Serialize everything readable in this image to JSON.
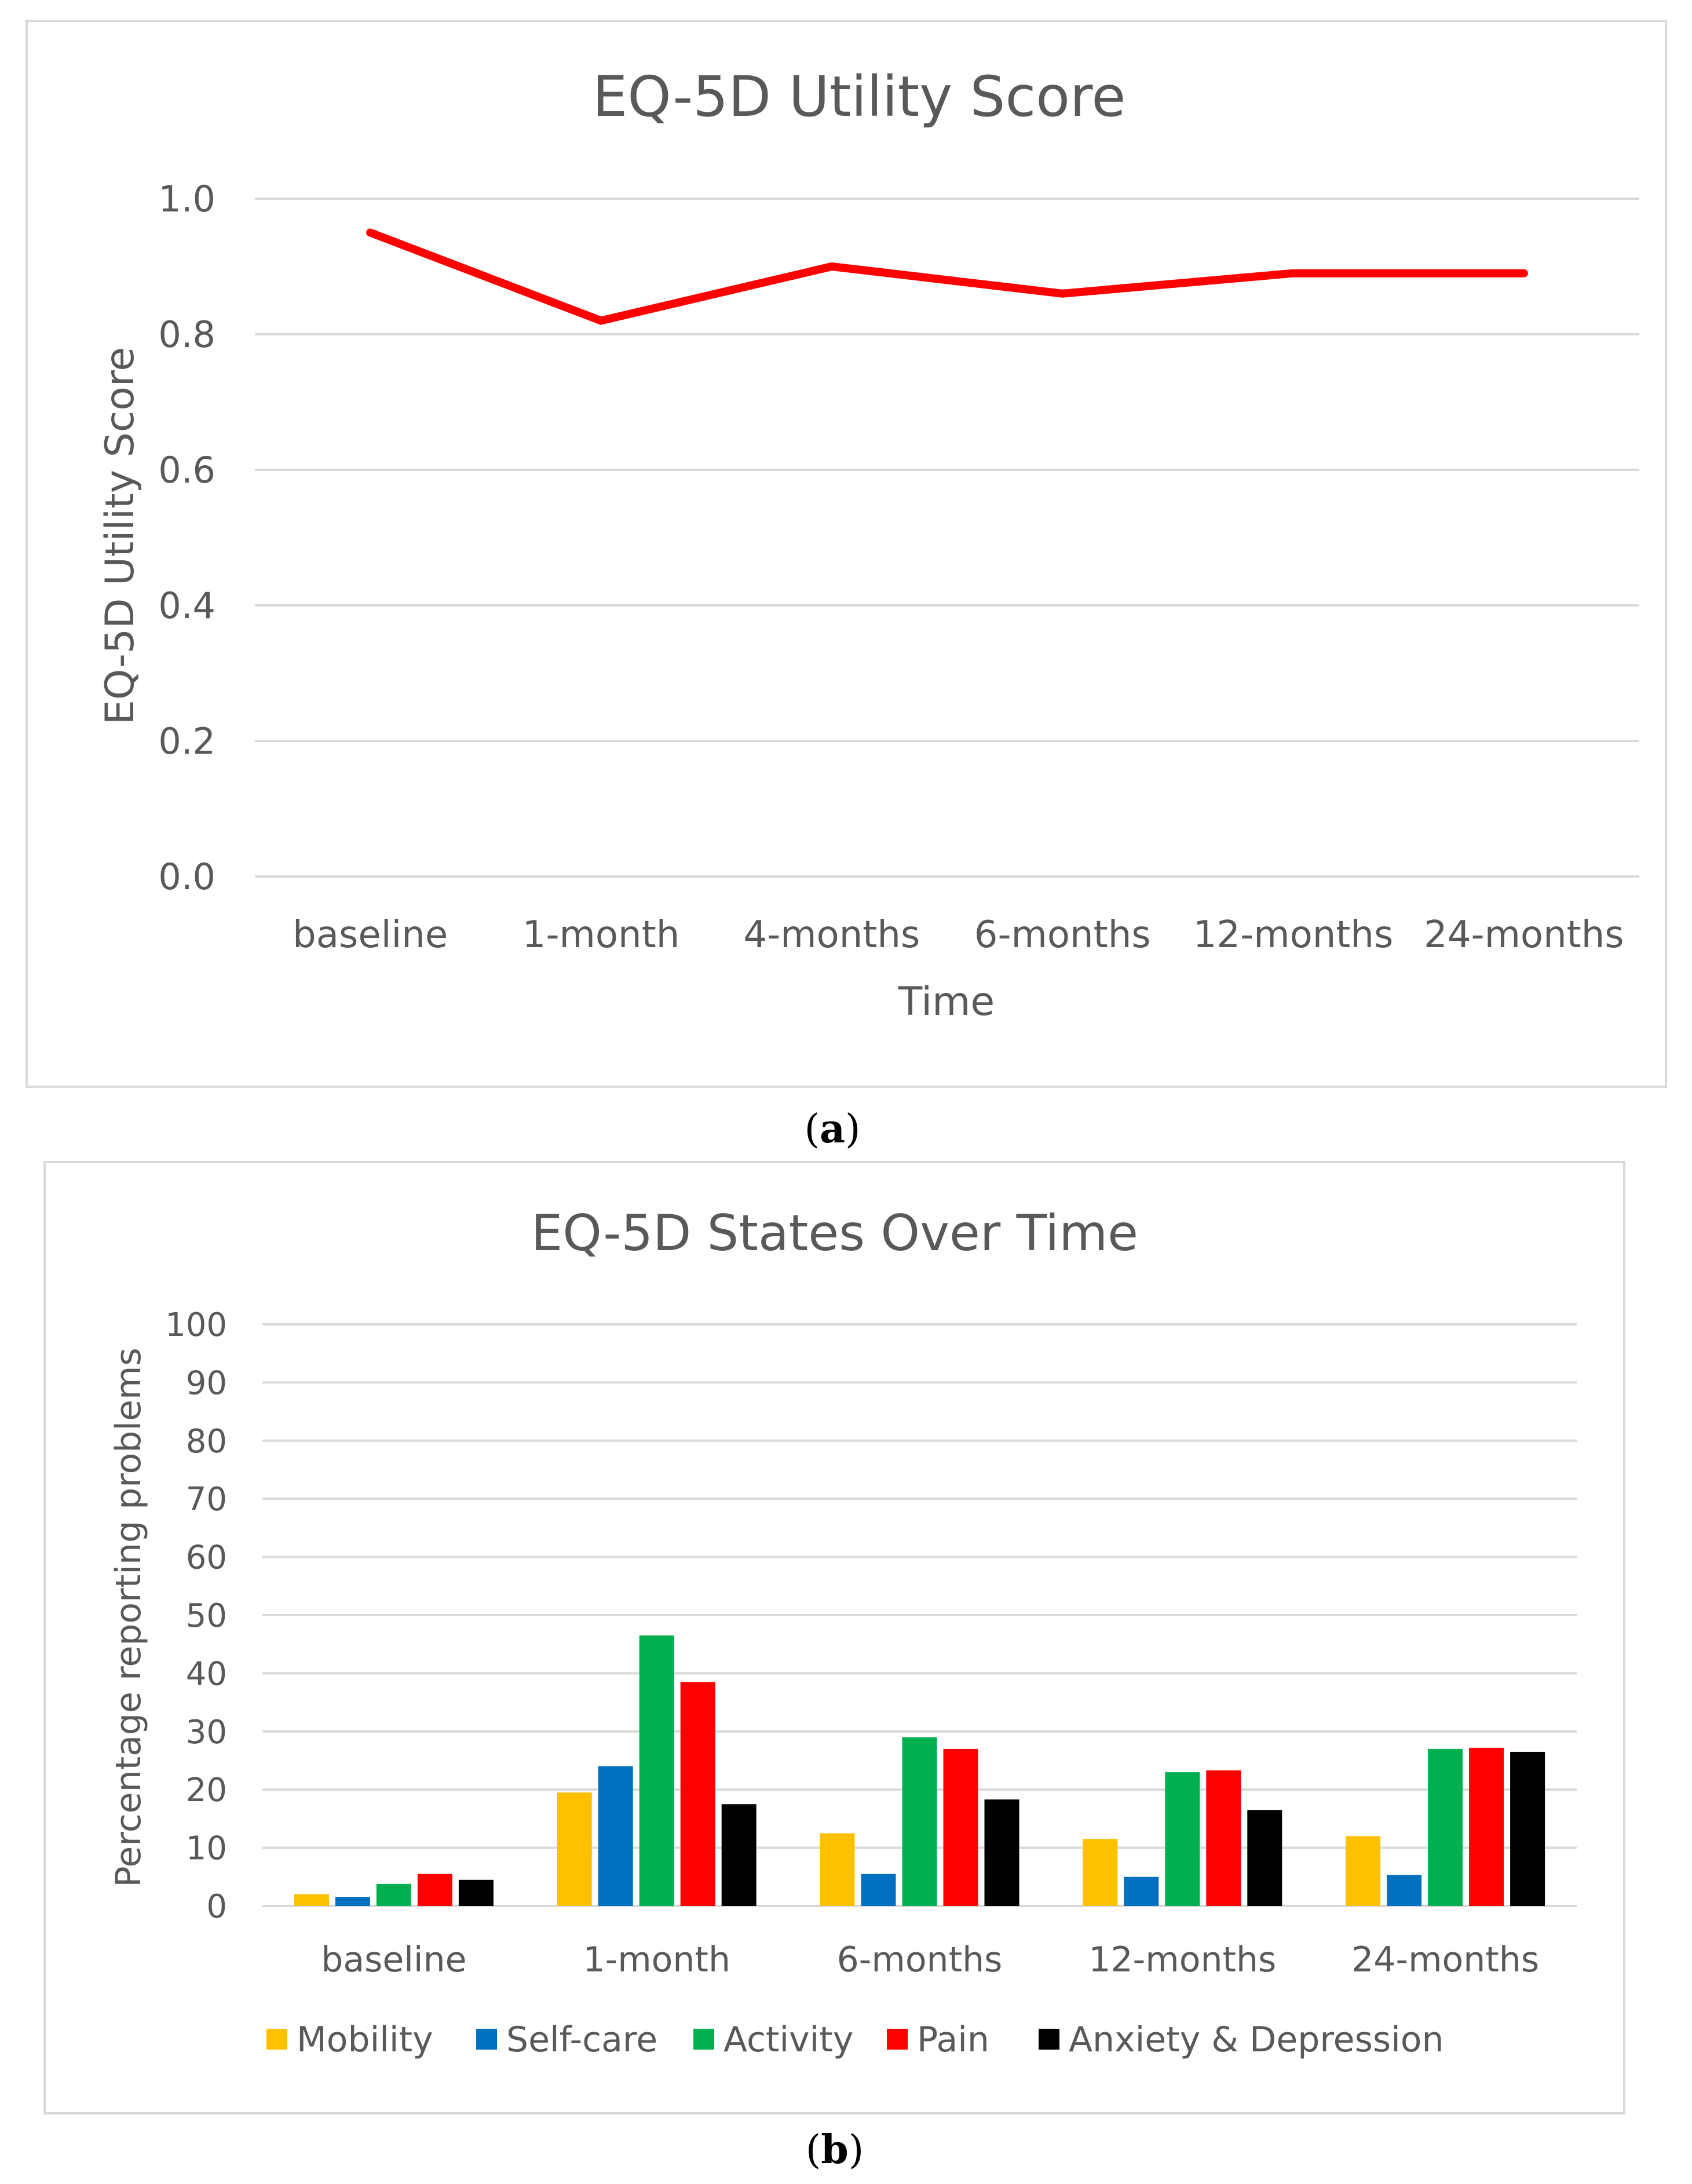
{
  "chart_data": [
    {
      "type": "line",
      "panel_label": "a",
      "title": "EQ-5D Utility Score",
      "xlabel": "Time",
      "ylabel": "EQ-5D Utility Score",
      "categories": [
        "baseline",
        "1-month",
        "4-months",
        "6-months",
        "12-months",
        "24-months"
      ],
      "values": [
        0.95,
        0.82,
        0.9,
        0.86,
        0.89,
        0.89
      ],
      "yticks": [
        "0.0",
        "0.2",
        "0.4",
        "0.6",
        "0.8",
        "1.0"
      ],
      "ylim": [
        0,
        1.0
      ],
      "grid": true,
      "line_color": "#ff0000"
    },
    {
      "type": "bar",
      "panel_label": "b",
      "title": "EQ-5D States Over Time",
      "xlabel": "",
      "ylabel": "Percentage reporting  problems",
      "categories": [
        "baseline",
        "1-month",
        "6-months",
        "12-months",
        "24-months"
      ],
      "yticks": [
        "0",
        "10",
        "20",
        "30",
        "40",
        "50",
        "60",
        "70",
        "80",
        "90",
        "100"
      ],
      "ylim": [
        0,
        100
      ],
      "grid": true,
      "legend": "bottom",
      "series": [
        {
          "name": "Mobility",
          "color": "#ffc000",
          "values": [
            2,
            19.5,
            12.5,
            11.5,
            12
          ]
        },
        {
          "name": "Self-care",
          "color": "#0070c0",
          "values": [
            1.5,
            24,
            5.5,
            5,
            5.3
          ]
        },
        {
          "name": "Activity",
          "color": "#00b050",
          "values": [
            3.8,
            46.5,
            29,
            23,
            27
          ]
        },
        {
          "name": "Pain",
          "color": "#ff0000",
          "values": [
            5.5,
            38.5,
            27,
            23.3,
            27.2
          ]
        },
        {
          "name": "Anxiety & Depression",
          "color": "#000000",
          "values": [
            4.5,
            17.5,
            18.3,
            16.5,
            26.5
          ]
        }
      ]
    }
  ]
}
